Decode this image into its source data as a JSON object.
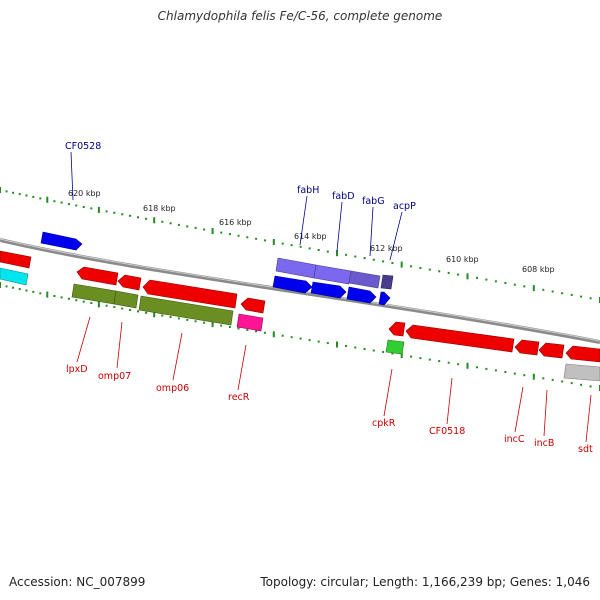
{
  "title": "Chlamydophila felis Fe/C-56, complete genome",
  "footer": {
    "accession": "Accession: NC_007899",
    "topology": "Topology: circular; Length: 1,166,239 bp; Genes: 1,046"
  },
  "colors": {
    "forward_gene_label": "#00008b",
    "reverse_gene_label": "#cc0000",
    "backbone": "#7a7a7a",
    "tick": "#228b22"
  },
  "kbp_ticks": [
    "620 kbp",
    "618 kbp",
    "616 kbp",
    "614 kbp",
    "612 kbp",
    "610 kbp",
    "608 kbp"
  ],
  "genes_forward": [
    {
      "name": "CF0528"
    },
    {
      "name": "fabH"
    },
    {
      "name": "fabD"
    },
    {
      "name": "fabG"
    },
    {
      "name": "acpP"
    }
  ],
  "genes_reverse": [
    {
      "name": "lpxD"
    },
    {
      "name": "omp07"
    },
    {
      "name": "omp06"
    },
    {
      "name": "recR"
    },
    {
      "name": "cpkR"
    },
    {
      "name": "CF0518"
    },
    {
      "name": "incC"
    },
    {
      "name": "incB"
    },
    {
      "name": "sdt"
    }
  ]
}
